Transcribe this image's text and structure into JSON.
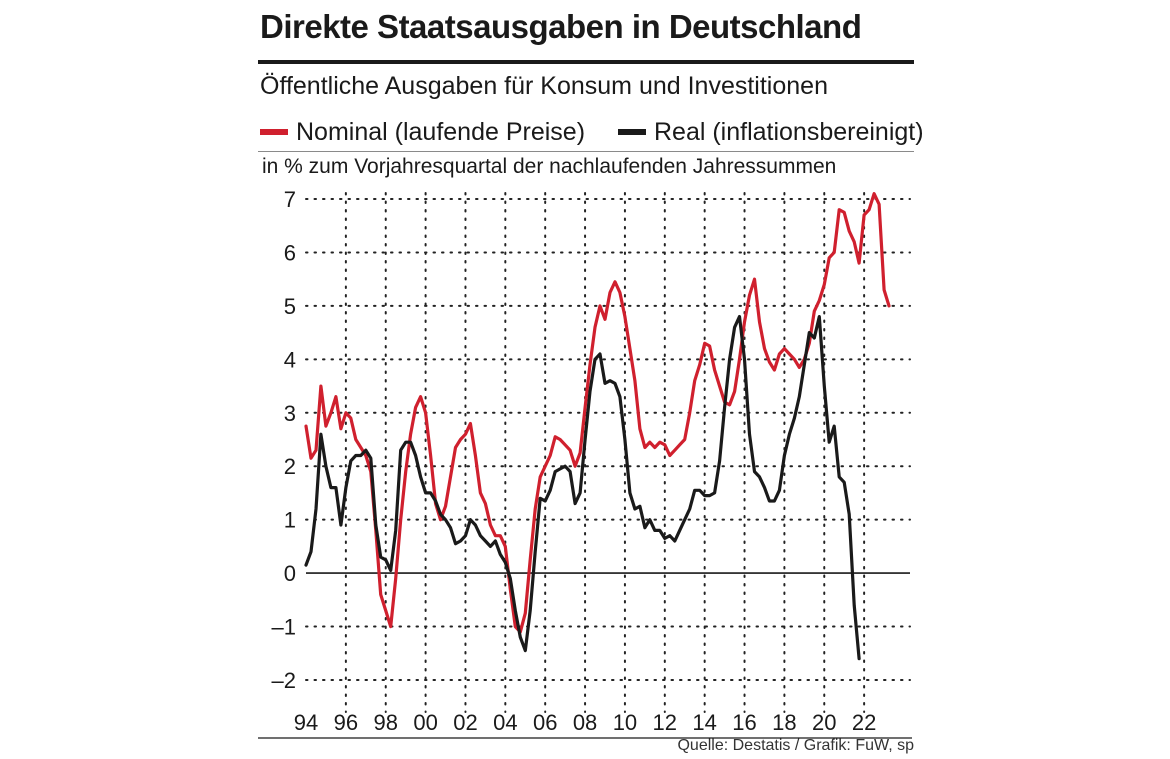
{
  "title": "Direkte Staatsausgaben in Deutschland",
  "subtitle": "Öffentliche Ausgaben für Konsum und Investitionen",
  "legend": [
    {
      "label": "Nominal (laufende Preise)",
      "color": "#d0202e"
    },
    {
      "label": "Real (inflationsbereinigt)",
      "color": "#1a1a1a"
    }
  ],
  "unit_label": "in  % zum Vorjahresquartal der nachlaufenden Jahressummen",
  "source": "Quelle: Destatis / Grafik: FuW, sp",
  "chart_data": {
    "type": "line",
    "title": "Direkte Staatsausgaben in Deutschland",
    "ylabel": "in % zum Vorjahresquartal der nachlaufenden Jahressummen",
    "xlim": [
      1994,
      2023.9
    ],
    "ylim": [
      -2,
      7
    ],
    "grid": true,
    "legend_position": "top",
    "yticks": [
      -2,
      -1,
      0,
      1,
      2,
      3,
      4,
      5,
      6,
      7
    ],
    "ytick_labels": [
      "–2",
      "–1",
      "0",
      "1",
      "2",
      "3",
      "4",
      "5",
      "6",
      "7"
    ],
    "xticks": [
      1994,
      1996,
      1998,
      2000,
      2002,
      2004,
      2006,
      2008,
      2010,
      2012,
      2014,
      2016,
      2018,
      2020,
      2022
    ],
    "xtick_labels": [
      "94",
      "96",
      "98",
      "00",
      "02",
      "04",
      "06",
      "08",
      "10",
      "12",
      "14",
      "16",
      "18",
      "20",
      "22"
    ],
    "series": [
      {
        "name": "Nominal (laufende Preise)",
        "color": "#d0202e",
        "points": [
          [
            1994.0,
            2.75
          ],
          [
            1994.25,
            2.15
          ],
          [
            1994.5,
            2.3
          ],
          [
            1994.75,
            3.5
          ],
          [
            1995.0,
            2.75
          ],
          [
            1995.25,
            3.0
          ],
          [
            1995.5,
            3.3
          ],
          [
            1995.75,
            2.7
          ],
          [
            1996.0,
            3.0
          ],
          [
            1996.25,
            2.9
          ],
          [
            1996.5,
            2.5
          ],
          [
            1996.75,
            2.35
          ],
          [
            1997.0,
            2.2
          ],
          [
            1997.25,
            1.9
          ],
          [
            1997.5,
            0.8
          ],
          [
            1997.75,
            -0.4
          ],
          [
            1998.0,
            -0.7
          ],
          [
            1998.25,
            -1.0
          ],
          [
            1998.5,
            -0.1
          ],
          [
            1998.75,
            1.0
          ],
          [
            1999.0,
            1.9
          ],
          [
            1999.25,
            2.6
          ],
          [
            1999.5,
            3.1
          ],
          [
            1999.75,
            3.3
          ],
          [
            2000.0,
            3.0
          ],
          [
            2000.25,
            2.2
          ],
          [
            2000.5,
            1.3
          ],
          [
            2000.75,
            1.0
          ],
          [
            2001.0,
            1.25
          ],
          [
            2001.25,
            1.8
          ],
          [
            2001.5,
            2.35
          ],
          [
            2001.75,
            2.5
          ],
          [
            2002.0,
            2.6
          ],
          [
            2002.25,
            2.8
          ],
          [
            2002.5,
            2.2
          ],
          [
            2002.75,
            1.5
          ],
          [
            2003.0,
            1.3
          ],
          [
            2003.25,
            0.9
          ],
          [
            2003.5,
            0.7
          ],
          [
            2003.75,
            0.7
          ],
          [
            2004.0,
            0.5
          ],
          [
            2004.25,
            -0.3
          ],
          [
            2004.5,
            -1.0
          ],
          [
            2004.75,
            -1.1
          ],
          [
            2005.0,
            -0.75
          ],
          [
            2005.25,
            0.25
          ],
          [
            2005.5,
            1.2
          ],
          [
            2005.75,
            1.8
          ],
          [
            2006.0,
            2.0
          ],
          [
            2006.25,
            2.2
          ],
          [
            2006.5,
            2.55
          ],
          [
            2006.75,
            2.5
          ],
          [
            2007.0,
            2.4
          ],
          [
            2007.25,
            2.3
          ],
          [
            2007.5,
            2.0
          ],
          [
            2007.75,
            2.25
          ],
          [
            2008.0,
            3.1
          ],
          [
            2008.25,
            3.9
          ],
          [
            2008.5,
            4.6
          ],
          [
            2008.75,
            5.0
          ],
          [
            2009.0,
            4.75
          ],
          [
            2009.25,
            5.25
          ],
          [
            2009.5,
            5.45
          ],
          [
            2009.75,
            5.25
          ],
          [
            2010.0,
            4.8
          ],
          [
            2010.25,
            4.2
          ],
          [
            2010.5,
            3.6
          ],
          [
            2010.75,
            2.7
          ],
          [
            2011.0,
            2.35
          ],
          [
            2011.25,
            2.45
          ],
          [
            2011.5,
            2.35
          ],
          [
            2011.75,
            2.45
          ],
          [
            2012.0,
            2.4
          ],
          [
            2012.25,
            2.2
          ],
          [
            2012.5,
            2.3
          ],
          [
            2012.75,
            2.4
          ],
          [
            2013.0,
            2.5
          ],
          [
            2013.25,
            3.0
          ],
          [
            2013.5,
            3.6
          ],
          [
            2013.75,
            3.9
          ],
          [
            2014.0,
            4.3
          ],
          [
            2014.25,
            4.25
          ],
          [
            2014.5,
            3.8
          ],
          [
            2014.75,
            3.5
          ],
          [
            2015.0,
            3.2
          ],
          [
            2015.25,
            3.15
          ],
          [
            2015.5,
            3.4
          ],
          [
            2015.75,
            4.0
          ],
          [
            2016.0,
            4.7
          ],
          [
            2016.25,
            5.2
          ],
          [
            2016.5,
            5.5
          ],
          [
            2016.75,
            4.7
          ],
          [
            2017.0,
            4.2
          ],
          [
            2017.25,
            3.95
          ],
          [
            2017.5,
            3.8
          ],
          [
            2017.75,
            4.1
          ],
          [
            2018.0,
            4.2
          ],
          [
            2018.25,
            4.1
          ],
          [
            2018.5,
            4.0
          ],
          [
            2018.75,
            3.85
          ],
          [
            2019.0,
            4.0
          ],
          [
            2019.25,
            4.3
          ],
          [
            2019.5,
            4.9
          ],
          [
            2019.75,
            5.1
          ],
          [
            2020.0,
            5.4
          ],
          [
            2020.25,
            5.9
          ],
          [
            2020.5,
            6.0
          ],
          [
            2020.75,
            6.8
          ],
          [
            2021.0,
            6.75
          ],
          [
            2021.25,
            6.4
          ],
          [
            2021.5,
            6.2
          ],
          [
            2021.75,
            5.8
          ],
          [
            2022.0,
            6.7
          ],
          [
            2022.25,
            6.8
          ],
          [
            2022.5,
            7.1
          ],
          [
            2022.75,
            6.9
          ],
          [
            2023.0,
            5.3
          ],
          [
            2023.25,
            5.0
          ]
        ]
      },
      {
        "name": "Real (inflationsbereinigt)",
        "color": "#1a1a1a",
        "points": [
          [
            1994.0,
            0.15
          ],
          [
            1994.25,
            0.4
          ],
          [
            1994.5,
            1.2
          ],
          [
            1994.75,
            2.6
          ],
          [
            1995.0,
            2.0
          ],
          [
            1995.25,
            1.6
          ],
          [
            1995.5,
            1.6
          ],
          [
            1995.75,
            0.9
          ],
          [
            1996.0,
            1.6
          ],
          [
            1996.25,
            2.1
          ],
          [
            1996.5,
            2.2
          ],
          [
            1996.75,
            2.2
          ],
          [
            1997.0,
            2.3
          ],
          [
            1997.25,
            2.15
          ],
          [
            1997.5,
            0.9
          ],
          [
            1997.75,
            0.3
          ],
          [
            1998.0,
            0.25
          ],
          [
            1998.25,
            0.05
          ],
          [
            1998.5,
            0.8
          ],
          [
            1998.75,
            2.3
          ],
          [
            1999.0,
            2.45
          ],
          [
            1999.25,
            2.45
          ],
          [
            1999.5,
            2.2
          ],
          [
            1999.75,
            1.8
          ],
          [
            2000.0,
            1.5
          ],
          [
            2000.25,
            1.5
          ],
          [
            2000.5,
            1.35
          ],
          [
            2000.75,
            1.1
          ],
          [
            2001.0,
            1.0
          ],
          [
            2001.25,
            0.85
          ],
          [
            2001.5,
            0.55
          ],
          [
            2001.75,
            0.6
          ],
          [
            2002.0,
            0.7
          ],
          [
            2002.25,
            1.0
          ],
          [
            2002.5,
            0.9
          ],
          [
            2002.75,
            0.7
          ],
          [
            2003.0,
            0.6
          ],
          [
            2003.25,
            0.5
          ],
          [
            2003.5,
            0.6
          ],
          [
            2003.75,
            0.35
          ],
          [
            2004.0,
            0.2
          ],
          [
            2004.25,
            -0.1
          ],
          [
            2004.5,
            -0.7
          ],
          [
            2004.75,
            -1.2
          ],
          [
            2005.0,
            -1.45
          ],
          [
            2005.25,
            -0.7
          ],
          [
            2005.5,
            0.4
          ],
          [
            2005.75,
            1.4
          ],
          [
            2006.0,
            1.35
          ],
          [
            2006.25,
            1.55
          ],
          [
            2006.5,
            1.9
          ],
          [
            2006.75,
            1.95
          ],
          [
            2007.0,
            2.0
          ],
          [
            2007.25,
            1.9
          ],
          [
            2007.5,
            1.3
          ],
          [
            2007.75,
            1.5
          ],
          [
            2008.0,
            2.5
          ],
          [
            2008.25,
            3.4
          ],
          [
            2008.5,
            4.0
          ],
          [
            2008.75,
            4.1
          ],
          [
            2009.0,
            3.55
          ],
          [
            2009.25,
            3.6
          ],
          [
            2009.5,
            3.55
          ],
          [
            2009.75,
            3.3
          ],
          [
            2010.0,
            2.5
          ],
          [
            2010.25,
            1.5
          ],
          [
            2010.5,
            1.2
          ],
          [
            2010.75,
            1.25
          ],
          [
            2011.0,
            0.85
          ],
          [
            2011.25,
            1.0
          ],
          [
            2011.5,
            0.8
          ],
          [
            2011.75,
            0.8
          ],
          [
            2012.0,
            0.65
          ],
          [
            2012.25,
            0.7
          ],
          [
            2012.5,
            0.6
          ],
          [
            2012.75,
            0.8
          ],
          [
            2013.0,
            1.0
          ],
          [
            2013.25,
            1.2
          ],
          [
            2013.5,
            1.55
          ],
          [
            2013.75,
            1.55
          ],
          [
            2014.0,
            1.45
          ],
          [
            2014.25,
            1.45
          ],
          [
            2014.5,
            1.5
          ],
          [
            2014.75,
            2.1
          ],
          [
            2015.0,
            3.1
          ],
          [
            2015.25,
            4.0
          ],
          [
            2015.5,
            4.6
          ],
          [
            2015.75,
            4.8
          ],
          [
            2016.0,
            4.0
          ],
          [
            2016.25,
            2.6
          ],
          [
            2016.5,
            1.9
          ],
          [
            2016.75,
            1.8
          ],
          [
            2017.0,
            1.6
          ],
          [
            2017.25,
            1.35
          ],
          [
            2017.5,
            1.35
          ],
          [
            2017.75,
            1.55
          ],
          [
            2018.0,
            2.2
          ],
          [
            2018.25,
            2.6
          ],
          [
            2018.5,
            2.9
          ],
          [
            2018.75,
            3.3
          ],
          [
            2019.0,
            3.9
          ],
          [
            2019.25,
            4.5
          ],
          [
            2019.5,
            4.4
          ],
          [
            2019.75,
            4.8
          ],
          [
            2020.0,
            3.5
          ],
          [
            2020.25,
            2.45
          ],
          [
            2020.5,
            2.75
          ],
          [
            2020.75,
            1.8
          ],
          [
            2021.0,
            1.7
          ],
          [
            2021.25,
            1.1
          ],
          [
            2021.5,
            -0.6
          ],
          [
            2021.75,
            -1.6
          ]
        ]
      }
    ]
  }
}
